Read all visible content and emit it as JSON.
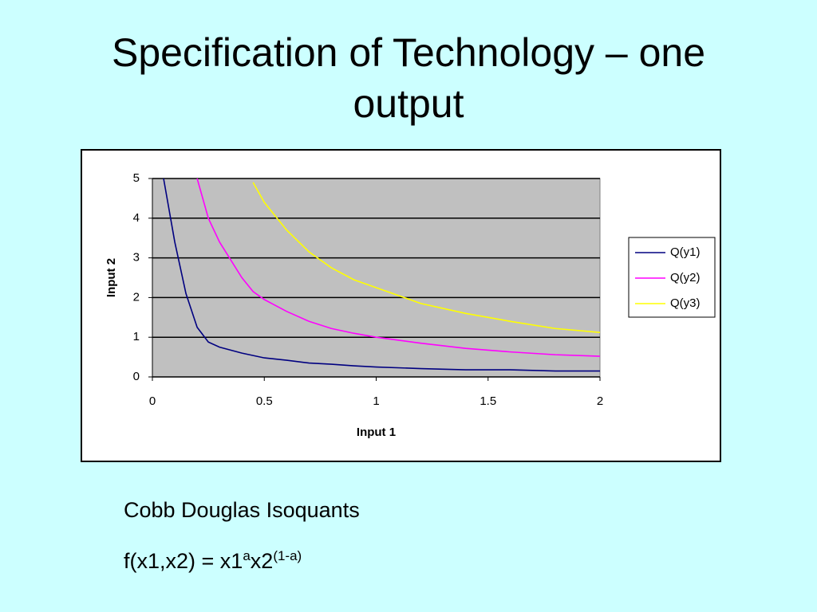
{
  "title": "Specification of Technology – one output",
  "chart_data": {
    "type": "line",
    "x_label": "Input 1",
    "y_label": "Input 2",
    "x": [
      0.05,
      0.1,
      0.15,
      0.2,
      0.25,
      0.3,
      0.4,
      0.45,
      0.5,
      0.6,
      0.7,
      0.8,
      0.9,
      1,
      1.2,
      1.4,
      1.6,
      1.8,
      2
    ],
    "series": [
      {
        "name": "Q(y1)",
        "color": "#000080",
        "values": [
          5,
          3.4,
          2.1,
          1.25,
          0.88,
          0.75,
          0.6,
          0.54,
          0.48,
          0.42,
          0.35,
          0.32,
          0.28,
          0.25,
          0.21,
          0.18,
          0.18,
          0.15,
          0.15
        ]
      },
      {
        "name": "Q(y2)",
        "color": "#ff00ff",
        "values": [
          null,
          null,
          null,
          5,
          4,
          3.4,
          2.5,
          2.15,
          1.95,
          1.65,
          1.4,
          1.22,
          1.1,
          1,
          0.85,
          0.72,
          0.63,
          0.56,
          0.52
        ]
      },
      {
        "name": "Q(y3)",
        "color": "#ffff00",
        "values": [
          null,
          null,
          null,
          null,
          null,
          null,
          null,
          4.9,
          4.4,
          3.7,
          3.15,
          2.75,
          2.45,
          2.25,
          1.85,
          1.6,
          1.4,
          1.22,
          1.12
        ]
      }
    ],
    "xlim": [
      0,
      2
    ],
    "xticks": [
      0,
      0.5,
      1,
      1.5,
      2
    ],
    "ylim": [
      0,
      5
    ],
    "yticks": [
      0,
      1,
      2,
      3,
      4,
      5
    ],
    "grid": true,
    "legend": "right",
    "plot_color": "#c0c0c0"
  },
  "caption": "Cobb Douglas Isoquants",
  "formula": {
    "base1": "f(x1,x2) = x1",
    "exp1": "a",
    "base2": "x2",
    "exp2": "(1-a)"
  }
}
